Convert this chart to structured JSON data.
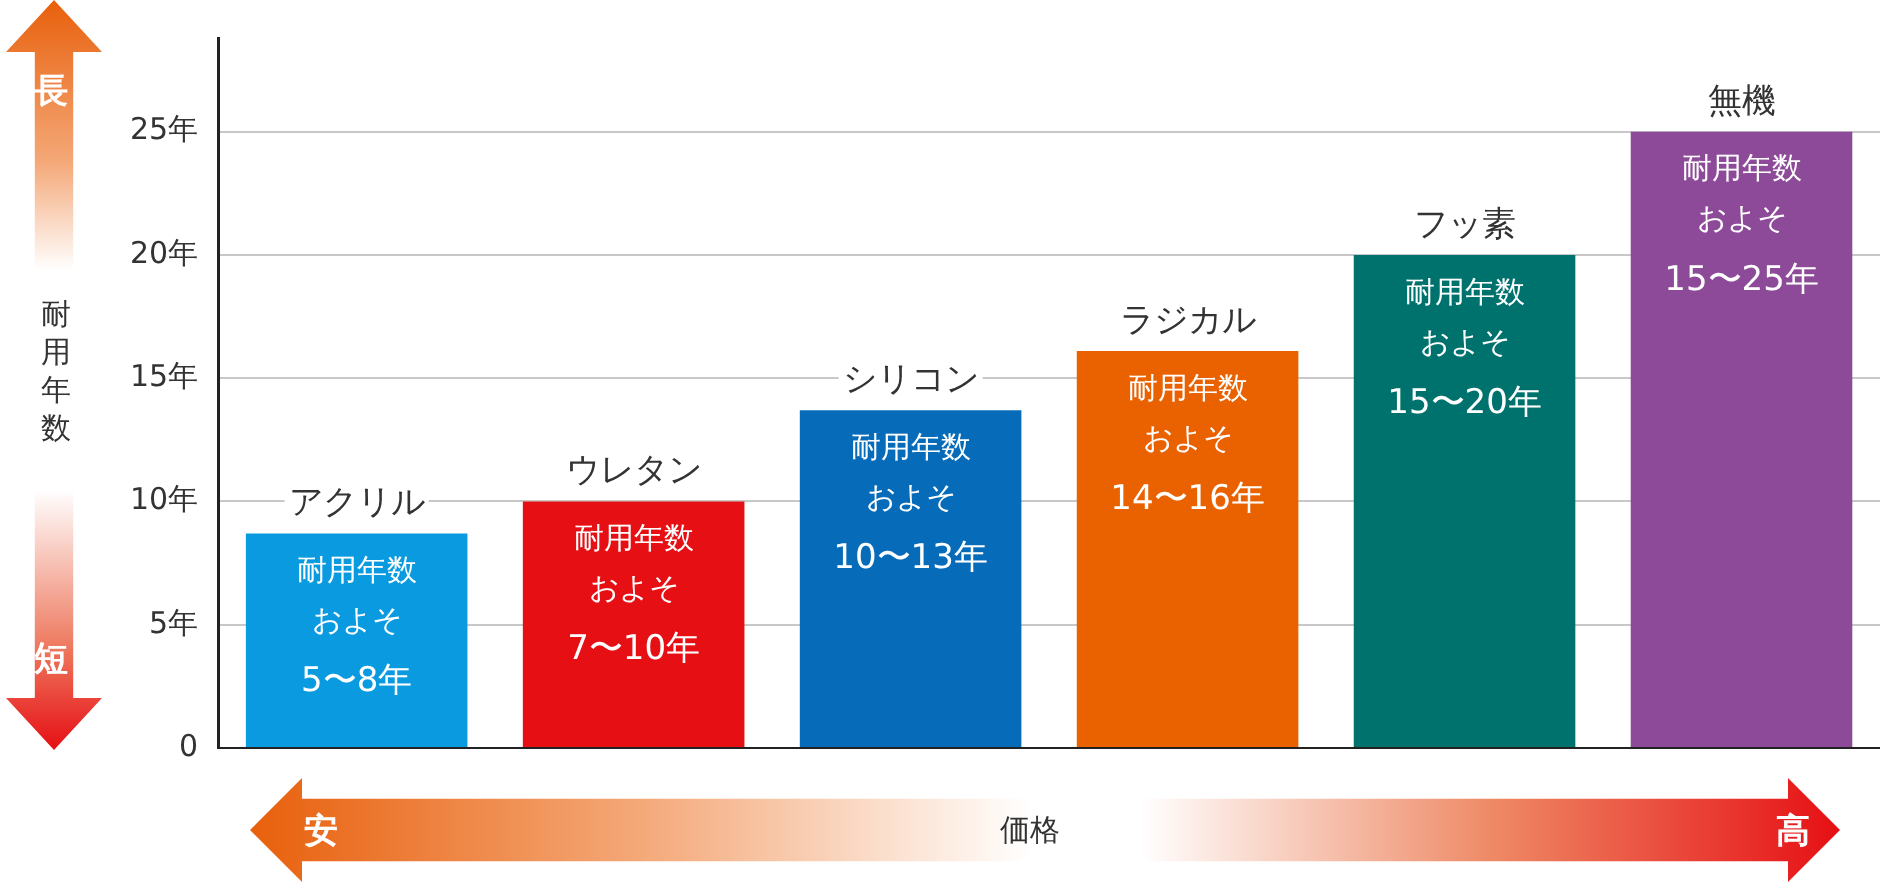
{
  "chart_data": {
    "type": "bar",
    "categories": [
      "アクリル",
      "ウレタン",
      "シリコン",
      "ラジカル",
      "フッ素",
      "無機"
    ],
    "values": [
      8.7,
      10,
      13.7,
      16.1,
      20,
      25
    ],
    "colors": [
      "#0a9ae0",
      "#e60f14",
      "#066bb9",
      "#ea6100",
      "#00726e",
      "#8d4a98"
    ],
    "value_labels": [
      "耐用年数およそ5〜8年",
      "耐用年数およそ7〜10年",
      "耐用年数およそ10〜13年",
      "耐用年数およそ14〜16年",
      "耐用年数およそ15〜20年",
      "耐用年数およそ15〜25年"
    ],
    "ylim": [
      0,
      28.8
    ],
    "yticks": [
      0,
      {
        "value": 5,
        "label": "5年"
      },
      {
        "value": 10,
        "label": "10年"
      },
      {
        "value": 15,
        "label": "15年"
      },
      {
        "value": 20,
        "label": "20年"
      },
      {
        "value": 25,
        "label": "25年"
      }
    ],
    "ylabel": "耐用年数",
    "xlabel": "価格",
    "annotations": [
      "長",
      "短",
      "安",
      "高"
    ],
    "grid": "y"
  }
}
